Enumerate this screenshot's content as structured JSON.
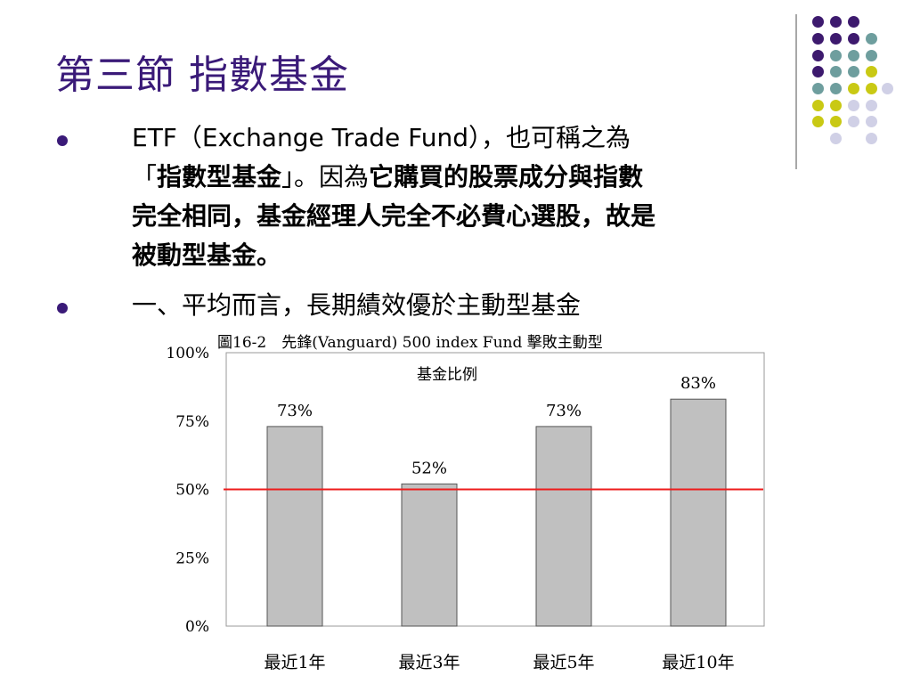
{
  "slide": {
    "title": "第三節 指數基金",
    "bullet1": {
      "line1": "ETF（Exchange Trade Fund），也可稱之為",
      "line2_pre": "「",
      "line2_bold": "指數型基金",
      "line2_mid": "」。因為",
      "line2_bold2": "它購買的股票成分與指數",
      "line3": "完全相同，基金經理人完全不必費心選股，故是",
      "line4": "被動型基金。"
    },
    "bullet2": "一、平均而言，長期績效優於主動型基金"
  },
  "colors": {
    "title": "#3a1a78",
    "dot_purple": "#3d1a6e",
    "dot_teal": "#6e9e9e",
    "dot_yellow": "#c9c914",
    "dot_lavender": "#d0d0e6",
    "bar": "#c0c0c0",
    "reference_line": "#ee1c1c"
  },
  "chart_data": {
    "type": "bar",
    "title": "圖16-2　先鋒(Vanguard) 500 index Fund 擊敗主動型",
    "subtitle": "基金比例",
    "categories": [
      "最近1年",
      "最近3年",
      "最近5年",
      "最近10年"
    ],
    "values": [
      73,
      52,
      73,
      83
    ],
    "data_labels": [
      "73%",
      "52%",
      "73%",
      "83%"
    ],
    "ylim": [
      0,
      100
    ],
    "yticks": [
      "0%",
      "25%",
      "50%",
      "75%",
      "100%"
    ],
    "yticks_values": [
      0,
      25,
      50,
      75,
      100
    ],
    "reference_line": 50,
    "grid": false,
    "legend": "none"
  }
}
